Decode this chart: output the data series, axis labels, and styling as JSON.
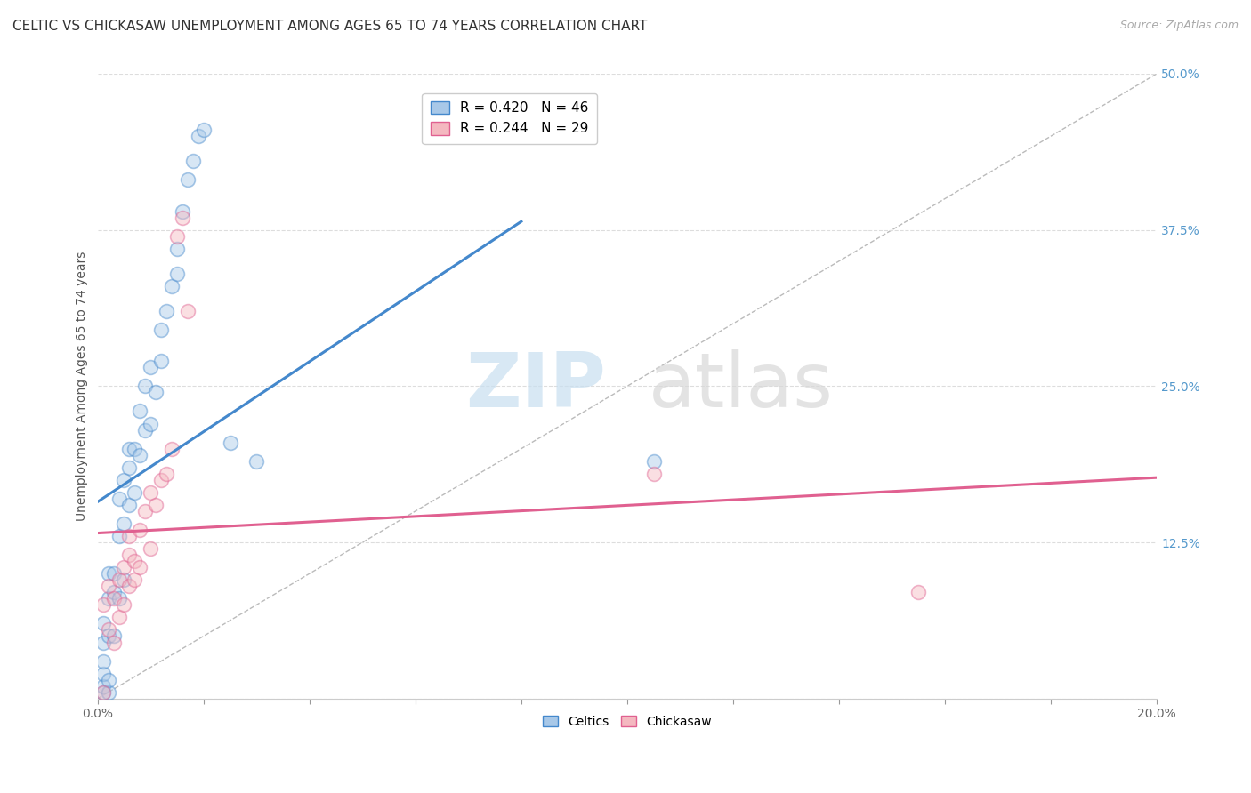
{
  "title": "CELTIC VS CHICKASAW UNEMPLOYMENT AMONG AGES 65 TO 74 YEARS CORRELATION CHART",
  "source": "Source: ZipAtlas.com",
  "ylabel": "Unemployment Among Ages 65 to 74 years",
  "xlim": [
    0.0,
    0.2
  ],
  "ylim": [
    0.0,
    0.5
  ],
  "xticks": [
    0.0,
    0.02,
    0.04,
    0.06,
    0.08,
    0.1,
    0.12,
    0.14,
    0.16,
    0.18,
    0.2
  ],
  "yticks": [
    0.0,
    0.125,
    0.25,
    0.375,
    0.5
  ],
  "celtics_R": 0.42,
  "celtics_N": 46,
  "chickasaw_R": 0.244,
  "chickasaw_N": 29,
  "celtics_color": "#a8c8e8",
  "chickasaw_color": "#f4b8c0",
  "celtics_line_color": "#4488cc",
  "chickasaw_line_color": "#e06090",
  "diagonal_color": "#bbbbbb",
  "watermark_zip": "ZIP",
  "watermark_atlas": "atlas",
  "background_color": "#ffffff",
  "grid_color": "#dddddd",
  "celtics_x": [
    0.001,
    0.001,
    0.001,
    0.001,
    0.001,
    0.001,
    0.002,
    0.002,
    0.002,
    0.002,
    0.002,
    0.003,
    0.003,
    0.003,
    0.004,
    0.004,
    0.004,
    0.005,
    0.005,
    0.005,
    0.006,
    0.006,
    0.006,
    0.007,
    0.007,
    0.008,
    0.008,
    0.009,
    0.009,
    0.01,
    0.01,
    0.011,
    0.012,
    0.012,
    0.013,
    0.014,
    0.015,
    0.015,
    0.016,
    0.017,
    0.018,
    0.019,
    0.02,
    0.025,
    0.03,
    0.105
  ],
  "celtics_y": [
    0.005,
    0.01,
    0.02,
    0.03,
    0.045,
    0.06,
    0.005,
    0.015,
    0.05,
    0.08,
    0.1,
    0.05,
    0.085,
    0.1,
    0.08,
    0.13,
    0.16,
    0.095,
    0.14,
    0.175,
    0.155,
    0.185,
    0.2,
    0.165,
    0.2,
    0.195,
    0.23,
    0.215,
    0.25,
    0.22,
    0.265,
    0.245,
    0.27,
    0.295,
    0.31,
    0.33,
    0.34,
    0.36,
    0.39,
    0.415,
    0.43,
    0.45,
    0.455,
    0.205,
    0.19,
    0.19
  ],
  "chickasaw_x": [
    0.001,
    0.001,
    0.002,
    0.002,
    0.003,
    0.003,
    0.004,
    0.004,
    0.005,
    0.005,
    0.006,
    0.006,
    0.006,
    0.007,
    0.007,
    0.008,
    0.008,
    0.009,
    0.01,
    0.01,
    0.011,
    0.012,
    0.013,
    0.014,
    0.015,
    0.016,
    0.017,
    0.105,
    0.155
  ],
  "chickasaw_y": [
    0.005,
    0.075,
    0.055,
    0.09,
    0.045,
    0.08,
    0.065,
    0.095,
    0.075,
    0.105,
    0.09,
    0.115,
    0.13,
    0.095,
    0.11,
    0.105,
    0.135,
    0.15,
    0.12,
    0.165,
    0.155,
    0.175,
    0.18,
    0.2,
    0.37,
    0.385,
    0.31,
    0.18,
    0.085
  ],
  "title_fontsize": 11,
  "label_fontsize": 10,
  "tick_fontsize": 10,
  "legend_fontsize": 11,
  "source_fontsize": 9,
  "marker_size": 130,
  "marker_alpha": 0.45,
  "marker_linewidth": 1.2
}
